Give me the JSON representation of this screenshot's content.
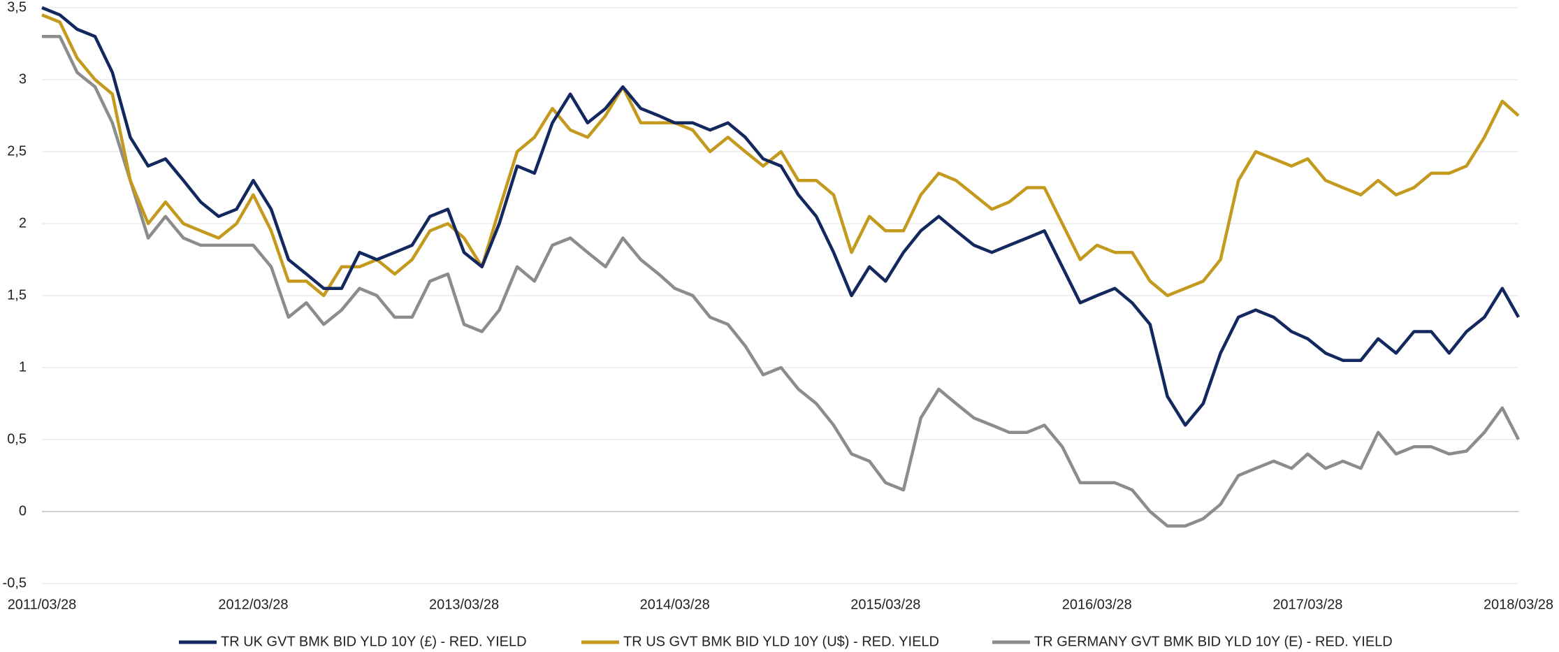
{
  "chart_data": {
    "type": "line",
    "x": [
      "2011/03/28",
      "2011/04/28",
      "2011/05/28",
      "2011/06/28",
      "2011/07/28",
      "2011/08/28",
      "2011/09/28",
      "2011/10/28",
      "2011/11/28",
      "2011/12/28",
      "2012/01/28",
      "2012/02/28",
      "2012/03/28",
      "2012/04/28",
      "2012/05/28",
      "2012/06/28",
      "2012/07/28",
      "2012/08/28",
      "2012/09/28",
      "2012/10/28",
      "2012/11/28",
      "2012/12/28",
      "2013/01/28",
      "2013/02/28",
      "2013/03/28",
      "2013/04/28",
      "2013/05/28",
      "2013/06/28",
      "2013/07/28",
      "2013/08/28",
      "2013/09/28",
      "2013/10/28",
      "2013/11/28",
      "2013/12/28",
      "2014/01/28",
      "2014/02/28",
      "2014/03/28",
      "2014/04/28",
      "2014/05/28",
      "2014/06/28",
      "2014/07/28",
      "2014/08/28",
      "2014/09/28",
      "2014/10/28",
      "2014/11/28",
      "2014/12/28",
      "2015/01/28",
      "2015/02/28",
      "2015/03/28",
      "2015/04/28",
      "2015/05/28",
      "2015/06/28",
      "2015/07/28",
      "2015/08/28",
      "2015/09/28",
      "2015/10/28",
      "2015/11/28",
      "2015/12/28",
      "2016/01/28",
      "2016/02/28",
      "2016/03/28",
      "2016/04/28",
      "2016/05/28",
      "2016/06/28",
      "2016/07/28",
      "2016/08/28",
      "2016/09/28",
      "2016/10/28",
      "2016/11/28",
      "2016/12/28",
      "2017/01/28",
      "2017/02/28",
      "2017/03/28",
      "2017/04/28",
      "2017/05/28",
      "2017/06/28",
      "2017/07/28",
      "2017/08/28",
      "2017/09/28",
      "2017/10/28",
      "2017/11/28",
      "2017/12/28",
      "2018/01/28",
      "2018/02/28",
      "2018/03/28"
    ],
    "series": [
      {
        "name": "TR UK GVT BMK BID YLD 10Y (£) - RED. YIELD",
        "color": "#13285e",
        "values": [
          3.5,
          3.45,
          3.35,
          3.3,
          3.05,
          2.6,
          2.4,
          2.45,
          2.3,
          2.15,
          2.05,
          2.1,
          2.3,
          2.1,
          1.75,
          1.65,
          1.55,
          1.55,
          1.8,
          1.75,
          1.8,
          1.85,
          2.05,
          2.1,
          1.8,
          1.7,
          2.0,
          2.4,
          2.35,
          2.7,
          2.9,
          2.7,
          2.8,
          2.95,
          2.8,
          2.75,
          2.7,
          2.7,
          2.65,
          2.7,
          2.6,
          2.45,
          2.4,
          2.2,
          2.05,
          1.8,
          1.5,
          1.7,
          1.6,
          1.8,
          1.95,
          2.05,
          1.95,
          1.85,
          1.8,
          1.85,
          1.9,
          1.95,
          1.7,
          1.45,
          1.5,
          1.55,
          1.45,
          1.3,
          0.8,
          0.6,
          0.75,
          1.1,
          1.35,
          1.4,
          1.35,
          1.25,
          1.2,
          1.1,
          1.05,
          1.05,
          1.2,
          1.1,
          1.25,
          1.25,
          1.1,
          1.25,
          1.35,
          1.55,
          1.35
        ]
      },
      {
        "name": "TR US GVT BMK BID YLD 10Y (U$) - RED. YIELD",
        "color": "#c49a1e",
        "values": [
          3.45,
          3.4,
          3.15,
          3.0,
          2.9,
          2.3,
          2.0,
          2.15,
          2.0,
          1.95,
          1.9,
          2.0,
          2.2,
          1.95,
          1.6,
          1.6,
          1.5,
          1.7,
          1.7,
          1.75,
          1.65,
          1.75,
          1.95,
          2.0,
          1.9,
          1.7,
          2.1,
          2.5,
          2.6,
          2.8,
          2.65,
          2.6,
          2.75,
          2.95,
          2.7,
          2.7,
          2.7,
          2.65,
          2.5,
          2.6,
          2.5,
          2.4,
          2.5,
          2.3,
          2.3,
          2.2,
          1.8,
          2.05,
          1.95,
          1.95,
          2.2,
          2.35,
          2.3,
          2.2,
          2.1,
          2.15,
          2.25,
          2.25,
          2.0,
          1.75,
          1.85,
          1.8,
          1.8,
          1.6,
          1.5,
          1.55,
          1.6,
          1.75,
          2.3,
          2.5,
          2.45,
          2.4,
          2.45,
          2.3,
          2.25,
          2.2,
          2.3,
          2.2,
          2.25,
          2.35,
          2.35,
          2.4,
          2.6,
          2.85,
          2.75
        ]
      },
      {
        "name": "TR GERMANY GVT BMK BID YLD 10Y (E) - RED. YIELD",
        "color": "#8c8c8c",
        "values": [
          3.3,
          3.3,
          3.05,
          2.95,
          2.7,
          2.3,
          1.9,
          2.05,
          1.9,
          1.85,
          1.85,
          1.85,
          1.85,
          1.7,
          1.35,
          1.45,
          1.3,
          1.4,
          1.55,
          1.5,
          1.35,
          1.35,
          1.6,
          1.65,
          1.3,
          1.25,
          1.4,
          1.7,
          1.6,
          1.85,
          1.9,
          1.8,
          1.7,
          1.9,
          1.75,
          1.65,
          1.55,
          1.5,
          1.35,
          1.3,
          1.15,
          0.95,
          1.0,
          0.85,
          0.75,
          0.6,
          0.4,
          0.35,
          0.2,
          0.15,
          0.65,
          0.85,
          0.75,
          0.65,
          0.6,
          0.55,
          0.55,
          0.6,
          0.45,
          0.2,
          0.2,
          0.2,
          0.15,
          0.0,
          -0.1,
          -0.1,
          -0.05,
          0.05,
          0.25,
          0.3,
          0.35,
          0.3,
          0.4,
          0.3,
          0.35,
          0.3,
          0.55,
          0.4,
          0.45,
          0.45,
          0.4,
          0.42,
          0.55,
          0.72,
          0.5
        ]
      }
    ],
    "xlim": [
      "2011/03/28",
      "2018/03/28"
    ],
    "xticks": [
      "2011/03/28",
      "2012/03/28",
      "2013/03/28",
      "2014/03/28",
      "2015/03/28",
      "2016/03/28",
      "2017/03/28",
      "2018/03/28"
    ],
    "ylim": [
      -0.5,
      3.5
    ],
    "yticks": [
      {
        "value": -0.5,
        "label": "-0,5"
      },
      0,
      {
        "value": 0.5,
        "label": "0,5"
      },
      1,
      {
        "value": 1.5,
        "label": "1,5"
      },
      2,
      {
        "value": 2.5,
        "label": "2,5"
      },
      3,
      {
        "value": 3.5,
        "label": "3,5"
      }
    ],
    "grid": true,
    "legend": "bottom"
  }
}
